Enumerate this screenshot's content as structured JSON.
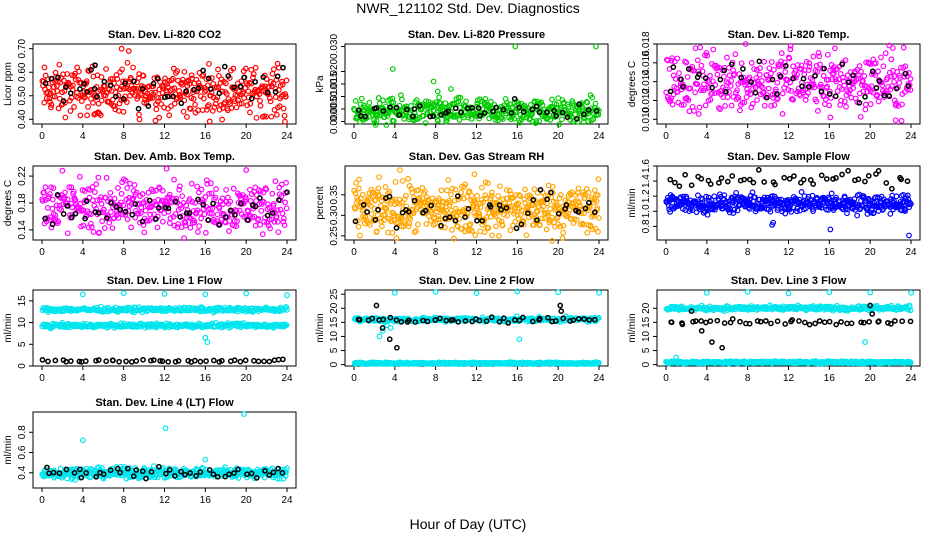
{
  "page": {
    "title": "NWR_121102  Std. Dev. Diagnostics",
    "x_title": "Hour of Day (UTC)"
  },
  "colors": {
    "red": "#ff0000",
    "green": "#00cc00",
    "magenta": "#ff00ff",
    "orange": "#ffa500",
    "blue": "#0000ff",
    "cyan": "#00e5ee",
    "black": "#000000"
  },
  "chart_data": [
    {
      "id": "co2",
      "type": "scatter",
      "title": "Stan. Dev. Li-820 CO2",
      "ylabel": "Licor ppm",
      "xlim": [
        0,
        24
      ],
      "ylim": [
        0.38,
        0.72
      ],
      "xticks": [
        0,
        4,
        8,
        12,
        16,
        20,
        24
      ],
      "yticks": [
        0.4,
        0.5,
        0.6,
        0.7
      ],
      "ytick_labels": [
        "0.40",
        "0.50",
        "0.60",
        "0.70"
      ],
      "series": [
        {
          "color": "red",
          "base": 0.52,
          "spread": 0.05,
          "count": 420,
          "outliers": [
            [
              7.8,
              0.7
            ],
            [
              8.5,
              0.69
            ],
            [
              23.8,
              0.39
            ],
            [
              5.5,
              0.43
            ],
            [
              9.5,
              0.42
            ],
            [
              14.2,
              0.41
            ]
          ]
        },
        {
          "color": "black",
          "base": 0.53,
          "spread": 0.04,
          "count": 45,
          "outliers": [
            [
              5.2,
              0.63
            ],
            [
              4.8,
              0.61
            ]
          ]
        }
      ]
    },
    {
      "id": "pressure",
      "type": "scatter",
      "title": "Stan. Dev. Li-820 Pressure",
      "ylabel": "kPa",
      "xlim": [
        0,
        24
      ],
      "ylim": [
        -0.001,
        0.031
      ],
      "xticks": [
        0,
        4,
        8,
        12,
        16,
        20,
        24
      ],
      "yticks": [
        0.0,
        0.005,
        0.01,
        0.015,
        0.02,
        0.03
      ],
      "ytick_labels": [
        "0.000",
        "0.005",
        "0.010",
        "0.015",
        "0.020",
        "0.030"
      ],
      "series": [
        {
          "color": "green",
          "base": 0.004,
          "spread": 0.0025,
          "count": 420,
          "outliers": [
            [
              3.8,
              0.021
            ],
            [
              7.8,
              0.016
            ],
            [
              9.5,
              0.013
            ],
            [
              15.8,
              0.03
            ],
            [
              23.7,
              0.03
            ],
            [
              8.2,
              0.012
            ]
          ]
        },
        {
          "color": "black",
          "base": 0.004,
          "spread": 0.002,
          "count": 45,
          "outliers": []
        }
      ]
    },
    {
      "id": "temp",
      "type": "scatter",
      "title": "Stan. Dev. Li-820 Temp.",
      "ylabel": "degrees C",
      "xlim": [
        0,
        24
      ],
      "ylim": [
        0.0095,
        0.018
      ],
      "xticks": [
        0,
        4,
        8,
        12,
        16,
        20,
        24
      ],
      "yticks": [
        0.01,
        0.012,
        0.014,
        0.016,
        0.018
      ],
      "ytick_labels": [
        "0.010",
        "0.012",
        "0.014",
        "0.016",
        "0.018"
      ],
      "series": [
        {
          "color": "magenta",
          "base": 0.014,
          "spread": 0.0016,
          "count": 420,
          "outliers": [
            [
              7.8,
              0.018
            ],
            [
              12.2,
              0.0178
            ],
            [
              16.1,
              0.0102
            ],
            [
              22.5,
              0.0099
            ]
          ]
        },
        {
          "color": "black",
          "base": 0.0142,
          "spread": 0.0013,
          "count": 45,
          "outliers": []
        }
      ]
    },
    {
      "id": "boxtemp",
      "type": "scatter",
      "title": "Stan. Dev. Amb. Box Temp.",
      "ylabel": "degrees C",
      "xlim": [
        0,
        24
      ],
      "ylim": [
        0.125,
        0.235
      ],
      "xticks": [
        0,
        4,
        8,
        12,
        16,
        20,
        24
      ],
      "yticks": [
        0.14,
        0.18,
        0.22
      ],
      "ytick_labels": [
        "0.14",
        "0.18",
        "0.22"
      ],
      "series": [
        {
          "color": "magenta",
          "base": 0.175,
          "spread": 0.018,
          "count": 420,
          "outliers": [
            [
              2.0,
              0.228
            ],
            [
              12.2,
              0.231
            ],
            [
              20.0,
              0.229
            ]
          ]
        },
        {
          "color": "black",
          "base": 0.168,
          "spread": 0.015,
          "count": 45,
          "outliers": []
        }
      ]
    },
    {
      "id": "rh",
      "type": "scatter",
      "title": "Stan. Dev. Gas Stream RH",
      "ylabel": "percent",
      "xlim": [
        0,
        24
      ],
      "ylim": [
        0.24,
        0.42
      ],
      "xticks": [
        0,
        4,
        8,
        12,
        16,
        20,
        24
      ],
      "yticks": [
        0.25,
        0.3,
        0.35
      ],
      "ytick_labels": [
        "0.25",
        "0.30",
        "0.35"
      ],
      "series": [
        {
          "color": "orange",
          "base": 0.315,
          "spread": 0.03,
          "count": 520,
          "outliers": [
            [
              4.5,
              0.41
            ],
            [
              11.8,
              0.4
            ],
            [
              14.2,
              0.25
            ],
            [
              23.9,
              0.26
            ]
          ]
        },
        {
          "color": "black",
          "base": 0.315,
          "spread": 0.025,
          "count": 45,
          "outliers": []
        }
      ]
    },
    {
      "id": "sampleflow",
      "type": "scatter",
      "title": "Stan. Dev. Sample Flow",
      "ylabel": "ml/min",
      "xlim": [
        0,
        24
      ],
      "ylim": [
        0.62,
        1.6
      ],
      "xticks": [
        0,
        4,
        8,
        12,
        16,
        20,
        24
      ],
      "yticks": [
        0.8,
        1.0,
        1.2,
        1.4,
        1.6
      ],
      "ytick_labels": [
        "0.8",
        "1.0",
        "1.2",
        "1.4",
        "1.6"
      ],
      "series": [
        {
          "color": "blue",
          "base": 1.1,
          "spread": 0.06,
          "count": 480,
          "outliers": [
            [
              10.5,
              0.85
            ],
            [
              16.1,
              0.76
            ],
            [
              23.8,
              0.68
            ],
            [
              10.4,
              0.82
            ]
          ]
        },
        {
          "color": "black",
          "base": 1.42,
          "spread": 0.05,
          "count": 45,
          "outliers": []
        }
      ]
    },
    {
      "id": "line1",
      "type": "scatter",
      "title": "Stan. Dev. Line 1 Flow",
      "ylabel": "ml/min",
      "xlim": [
        0,
        24
      ],
      "ylim": [
        0,
        17.5
      ],
      "xticks": [
        0,
        4,
        8,
        12,
        16,
        20,
        24
      ],
      "yticks": [
        0,
        5,
        10,
        15
      ],
      "ytick_labels": [
        "0",
        "5",
        "10",
        "15"
      ],
      "series": [
        {
          "color": "cyan",
          "base": 13,
          "spread": 0.25,
          "count": 300,
          "outliers": [
            [
              4.0,
              16.5
            ],
            [
              8.0,
              16.8
            ],
            [
              12.0,
              16.6
            ],
            [
              16.0,
              16.5
            ],
            [
              20.0,
              16.7
            ],
            [
              24.0,
              16.3
            ],
            [
              16.0,
              6.5
            ],
            [
              16.2,
              5.5
            ]
          ]
        },
        {
          "color": "cyan",
          "base": 9.3,
          "spread": 0.25,
          "count": 300,
          "outliers": []
        },
        {
          "color": "black",
          "base": 1.2,
          "spread": 0.15,
          "count": 45,
          "outliers": []
        }
      ]
    },
    {
      "id": "line2",
      "type": "scatter",
      "title": "Stan. Dev. Line 2 Flow",
      "ylabel": "ml/min",
      "xlim": [
        0,
        24
      ],
      "ylim": [
        -0.5,
        26.5
      ],
      "xticks": [
        0,
        4,
        8,
        12,
        16,
        20,
        24
      ],
      "yticks": [
        0,
        5,
        10,
        15,
        20,
        25
      ],
      "ytick_labels": [
        "0",
        "5",
        "10",
        "15",
        "20",
        "25"
      ],
      "series": [
        {
          "color": "cyan",
          "base": 16,
          "spread": 0.4,
          "count": 300,
          "outliers": [
            [
              2.5,
              10
            ],
            [
              2.8,
              12
            ],
            [
              3.2,
              14
            ],
            [
              3.6,
              13
            ],
            [
              4.0,
              25.5
            ],
            [
              8.0,
              25.8
            ],
            [
              12.0,
              25.4
            ],
            [
              16.0,
              26
            ],
            [
              20.0,
              25.7
            ],
            [
              24.0,
              25.5
            ],
            [
              16.2,
              9
            ]
          ]
        },
        {
          "color": "cyan",
          "base": 0.5,
          "spread": 0.15,
          "count": 400,
          "outliers": []
        },
        {
          "color": "black",
          "base": 16,
          "spread": 0.5,
          "count": 45,
          "outliers": [
            [
              2.2,
              21
            ],
            [
              2.8,
              13
            ],
            [
              3.5,
              9
            ],
            [
              4.2,
              6
            ],
            [
              20.2,
              21
            ],
            [
              20.3,
              19
            ]
          ]
        }
      ]
    },
    {
      "id": "line3",
      "type": "scatter",
      "title": "Stan. Dev. Line 3 Flow",
      "ylabel": "ml/min",
      "xlim": [
        0,
        24
      ],
      "ylim": [
        -0.5,
        26.5
      ],
      "xticks": [
        0,
        4,
        8,
        12,
        16,
        20,
        24
      ],
      "yticks": [
        0,
        5,
        10,
        15,
        20
      ],
      "ytick_labels": [
        "0",
        "5",
        "10",
        "15",
        "20"
      ],
      "series": [
        {
          "color": "cyan",
          "base": 20,
          "spread": 0.4,
          "count": 320,
          "outliers": [
            [
              4.0,
              25.5
            ],
            [
              8.0,
              25.8
            ],
            [
              12.0,
              25.3
            ],
            [
              16.0,
              25.7
            ],
            [
              20.0,
              25.6
            ],
            [
              24.0,
              25.5
            ],
            [
              1.0,
              2.5
            ],
            [
              19.5,
              8
            ]
          ]
        },
        {
          "color": "cyan",
          "base": 0.8,
          "spread": 0.2,
          "count": 400,
          "outliers": []
        },
        {
          "color": "black",
          "base": 15,
          "spread": 0.6,
          "count": 45,
          "outliers": [
            [
              2.5,
              19
            ],
            [
              3.5,
              12
            ],
            [
              4.5,
              8
            ],
            [
              5.5,
              6
            ],
            [
              20.0,
              21
            ],
            [
              20.2,
              18
            ]
          ]
        }
      ]
    },
    {
      "id": "line4",
      "type": "scatter",
      "title": "Stan. Dev. Line 4 (LT) Flow",
      "ylabel": "ml/min",
      "xlim": [
        0,
        24
      ],
      "ylim": [
        0.25,
        1.0
      ],
      "xticks": [
        0,
        4,
        8,
        12,
        16,
        20,
        24
      ],
      "yticks": [
        0.4,
        0.6,
        0.8
      ],
      "ytick_labels": [
        "0.4",
        "0.6",
        "0.8"
      ],
      "series": [
        {
          "color": "cyan",
          "base": 0.4,
          "spread": 0.025,
          "count": 450,
          "outliers": [
            [
              4.0,
              0.72
            ],
            [
              12.1,
              0.84
            ],
            [
              19.8,
              0.98
            ],
            [
              16.0,
              0.53
            ]
          ]
        },
        {
          "color": "black",
          "base": 0.4,
          "spread": 0.03,
          "count": 45,
          "outliers": []
        }
      ]
    }
  ]
}
